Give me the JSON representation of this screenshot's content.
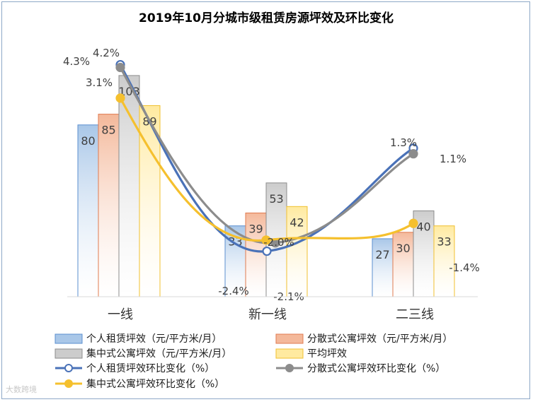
{
  "chart_data": {
    "type": "bar",
    "title": "2019年10月分城市级租赁房源坪效及环比变化",
    "categories": [
      "一线",
      "新一线",
      "二三线"
    ],
    "ylim": [
      0,
      130
    ],
    "bar_series": [
      {
        "name": "个人租赁坪效（元/平方米/月）",
        "values": [
          80,
          33,
          27
        ],
        "color": "#a9c7e8",
        "stroke": "#5b8fcf"
      },
      {
        "name": "分散式公寓坪效（元/平方米/月）",
        "values": [
          85,
          39,
          30
        ],
        "color": "#f4b89a",
        "stroke": "#e07b50"
      },
      {
        "name": "集中式公寓坪效（元/平方米/月）",
        "values": [
          103,
          53,
          40
        ],
        "color": "#cccccc",
        "stroke": "#8c8c8c"
      },
      {
        "name": "平均坪效",
        "values": [
          89,
          42,
          33
        ],
        "color": "#ffeaa0",
        "stroke": "#f0c030"
      }
    ],
    "line_series": [
      {
        "name": "个人租赁坪效环比变化（%）",
        "values": [
          4.3,
          -2.4,
          1.3
        ],
        "labels": [
          "4.3%",
          "-2.4%",
          "1.3%"
        ],
        "color": "#4a72b8"
      },
      {
        "name": "分散式公寓坪效环比变化（%）",
        "values": [
          4.2,
          -2.1,
          1.1
        ],
        "labels": [
          "4.2%",
          "-2.1%",
          "1.1%"
        ],
        "color": "#8c8c8c"
      },
      {
        "name": "集中式公寓坪效环比变化（%）",
        "values": [
          3.1,
          -2.0,
          -1.4
        ],
        "labels": [
          "3.1%",
          "-2.0%",
          "-1.4%"
        ],
        "color": "#f5c02e"
      }
    ]
  },
  "watermark": "大数跨境"
}
